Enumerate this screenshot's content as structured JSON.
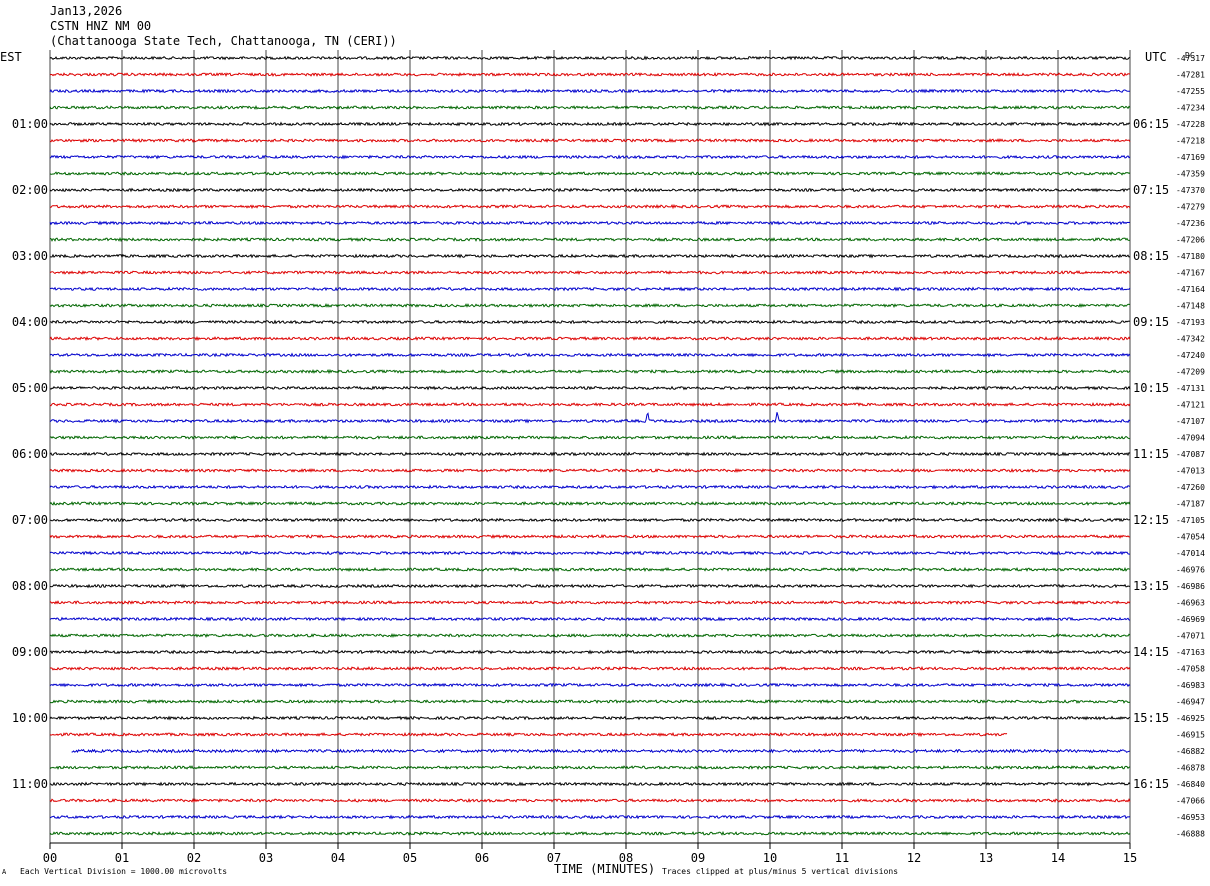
{
  "header": {
    "date": "Jan13,2026",
    "station": "CSTN HNZ NM 00",
    "location": "(Chattanooga State Tech, Chattanooga, TN (CERI))"
  },
  "labels": {
    "left_zone": "EST",
    "right_zone": "UTC",
    "dc": "DC",
    "xlabel": "TIME (MINUTES)",
    "footer_left": "Each Vertical Division = 1000.00 microvolts",
    "footer_right": "Traces clipped at plus/minus 5 vertical divisions",
    "corner_mark": "A"
  },
  "chart_data": {
    "type": "line",
    "title": "CSTN HNZ NM 00",
    "xlabel": "TIME (MINUTES)",
    "xlim": [
      0,
      15
    ],
    "x_ticks": [
      "00",
      "01",
      "02",
      "03",
      "04",
      "05",
      "06",
      "07",
      "08",
      "09",
      "10",
      "11",
      "12",
      "13",
      "14",
      "15"
    ],
    "grid": true,
    "trace_colors": [
      "#000000",
      "#dd0000",
      "#0000cc",
      "#006600"
    ],
    "est_labels": [
      "01:00",
      "02:00",
      "03:00",
      "04:00",
      "05:00",
      "06:00",
      "07:00",
      "08:00",
      "09:00",
      "10:00",
      "11:00"
    ],
    "utc_labels": [
      "06:15",
      "07:15",
      "08:15",
      "09:15",
      "10:15",
      "11:15",
      "12:15",
      "13:15",
      "14:15",
      "15:15",
      "16:15"
    ],
    "dc_offsets": [
      "-47317",
      "-47281",
      "-47255",
      "-47234",
      "-47228",
      "-47218",
      "-47169",
      "-47359",
      "-47370",
      "-47279",
      "-47236",
      "-47206",
      "-47180",
      "-47167",
      "-47164",
      "-47148",
      "-47193",
      "-47342",
      "-47240",
      "-47209",
      "-47131",
      "-47121",
      "-47107",
      "-47094",
      "-47087",
      "-47013",
      "-47260",
      "-47187",
      "-47105",
      "-47054",
      "-47014",
      "-46976",
      "-46986",
      "-46963",
      "-46969",
      "-47071",
      "-47163",
      "-47058",
      "-46983",
      "-46947",
      "-46925",
      "-46915",
      "-46882",
      "-46878",
      "-46840",
      "-47066",
      "-46953",
      "-46888"
    ],
    "partial_traces": [
      {
        "index": 41,
        "end_minute": 13.3
      },
      {
        "index": 42,
        "start_minute": 0.3
      }
    ],
    "events": [
      {
        "index": 22,
        "minute": 8.3
      },
      {
        "index": 22,
        "minute": 10.1
      }
    ]
  }
}
